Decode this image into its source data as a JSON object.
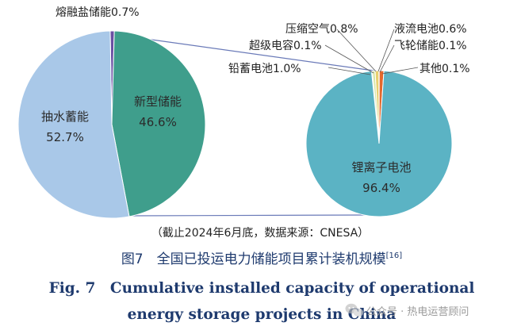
{
  "chart_data": [
    {
      "type": "pie",
      "title": "",
      "slices": [
        {
          "label": "抽水蓄能",
          "value": 52.7,
          "value_label": "52.7%",
          "color": "#a9c8e8"
        },
        {
          "label": "新型储能",
          "value": 46.6,
          "value_label": "46.6%",
          "color": "#3f9e8c"
        },
        {
          "label": "熔融盐储能",
          "value": 0.7,
          "value_label": "熔融盐储能0.7%",
          "color": "#6a4fa3"
        }
      ]
    },
    {
      "type": "pie",
      "title": "新型储能",
      "slices": [
        {
          "label": "锂离子电池",
          "value": 96.4,
          "value_label": "96.4%",
          "color": "#5bb3c4"
        },
        {
          "label": "铅蓄电池",
          "value": 1.0,
          "value_label": "铅蓄电池1.0%",
          "color": "#e4682c"
        },
        {
          "label": "超级电容",
          "value": 0.1,
          "value_label": "超级电容0.1%",
          "color": "#f0c24a"
        },
        {
          "label": "压缩空气",
          "value": 0.8,
          "value_label": "压缩空气0.8%",
          "color": "#e8d070"
        },
        {
          "label": "液流电池",
          "value": 0.6,
          "value_label": "液流电池0.6%",
          "color": "#d9e6a8"
        },
        {
          "label": "飞轮储能",
          "value": 0.1,
          "value_label": "飞轮储能0.1%",
          "color": "#b9d98f"
        },
        {
          "label": "其他",
          "value": 0.1,
          "value_label": "其他0.1%",
          "color": "#8fc7a0"
        }
      ]
    }
  ],
  "source_note": "（截止2024年6月底，数据来源：CNESA）",
  "caption_cn": "图7　全国已投运电力储能项目累计装机规模",
  "caption_cn_ref": "[16]",
  "caption_en_line1": "Fig. 7　Cumulative installed capacity of operational",
  "caption_en_line2": "energy storage projects in China",
  "watermark": "公众号 · 热电运营顾问",
  "watermark_icon": "wechat-icon"
}
